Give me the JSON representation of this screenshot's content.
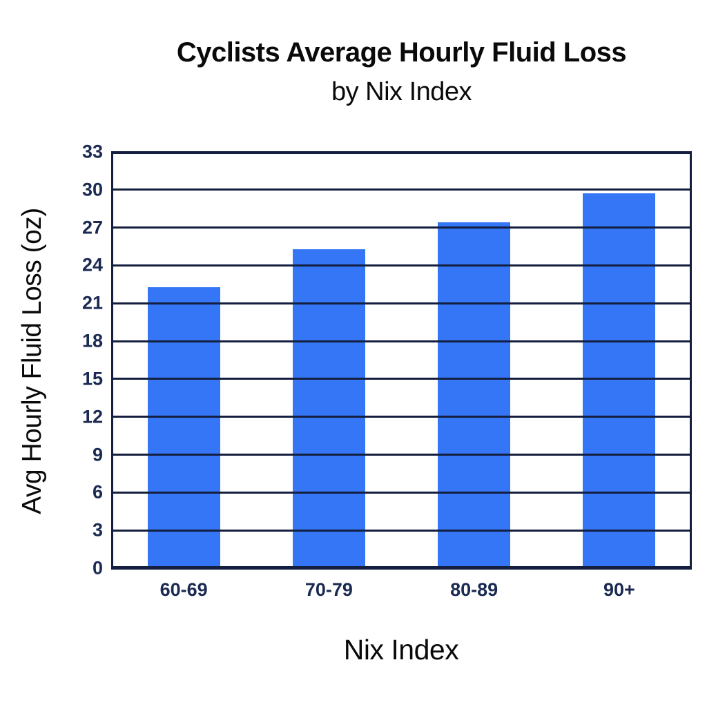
{
  "chart_data": {
    "type": "bar",
    "title": "Cyclists Average Hourly Fluid Loss",
    "subtitle": "by Nix Index",
    "xlabel": "Nix Index",
    "ylabel": "Avg Hourly Fluid Loss (oz)",
    "categories": [
      "60-69",
      "70-79",
      "80-89",
      "90+"
    ],
    "values": [
      22.3,
      25.3,
      27.4,
      29.7
    ],
    "ylim": [
      0,
      33
    ],
    "yticks": [
      0,
      3,
      6,
      9,
      12,
      15,
      18,
      21,
      24,
      27,
      30,
      33
    ],
    "grid": "horizontal",
    "legend": "none",
    "colors": {
      "bar": "#3476F6",
      "grid": "#141E3E",
      "axis_border": "#141E3E",
      "tick_label": "#1B2A52",
      "title_text": "#0A0A0A",
      "background": "#FFFFFF"
    }
  }
}
